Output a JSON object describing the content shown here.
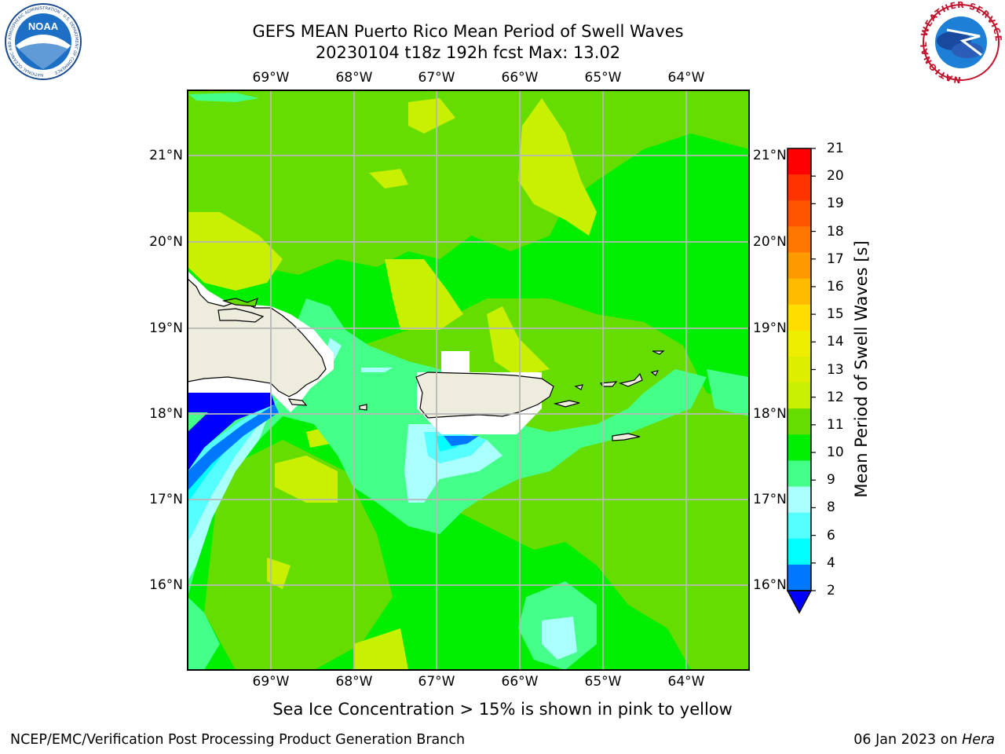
{
  "header": {
    "title_line1": "GEFS MEAN Puerto Rico Mean Period of Swell Waves",
    "title_line2": "20230104 t18z 192h fcst   Max: 13.02"
  },
  "map": {
    "lon_labels": [
      "69°W",
      "68°W",
      "67°W",
      "66°W",
      "65°W",
      "64°W"
    ],
    "lat_labels": [
      "21°N",
      "20°N",
      "19°N",
      "18°N",
      "17°N",
      "16°N"
    ],
    "land_color": "#eeecdc",
    "dominant_field_color": "#00ee00"
  },
  "colorbar": {
    "label": "Mean Period of Swell Waves [s]",
    "ticks": [
      "21",
      "20",
      "19",
      "18",
      "17",
      "16",
      "15",
      "14",
      "13",
      "12",
      "11",
      "10",
      "9",
      "8",
      "6",
      "4",
      "2"
    ],
    "colors": [
      "#ff0000",
      "#ff3300",
      "#ff5500",
      "#ff7700",
      "#ff9900",
      "#ffbb00",
      "#ffdd00",
      "#eeee00",
      "#ddee00",
      "#c8f000",
      "#66dd00",
      "#00ee00",
      "#44ff88",
      "#aaffff",
      "#55ffff",
      "#00ffff",
      "#0077ff"
    ],
    "extend_color": "#0000ff"
  },
  "subtitle": "Sea Ice Concentration > 15% is shown in pink to yellow",
  "footer": {
    "left": "NCEP/EMC/Verification Post Processing Product Generation Branch",
    "right_prefix": "06 Jan 2023 on",
    "right_host": "Hera"
  },
  "logos": {
    "left": "NOAA",
    "left_ring": "NATIONAL OCEANIC AND ATMOSPHERIC ADMINISTRATION · U.S. DEPARTMENT OF COMMERCE",
    "right_ring": "NATIONAL WEATHER SERVICE"
  }
}
